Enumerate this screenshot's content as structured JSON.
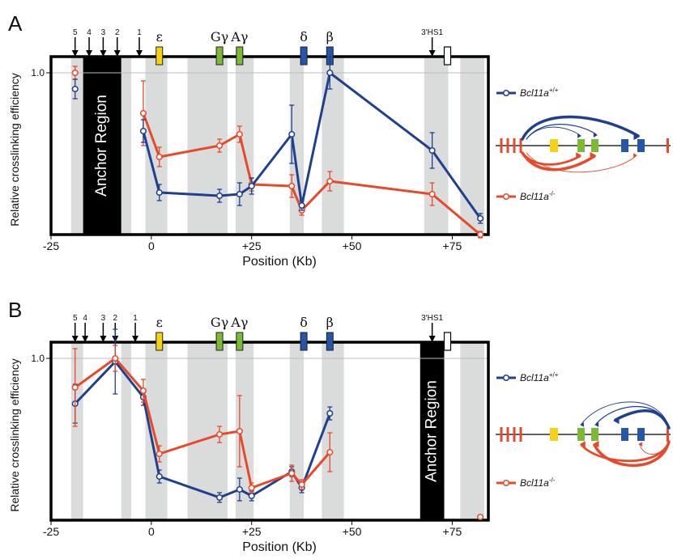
{
  "colors": {
    "wildtype": "#1f3f8f",
    "knockout": "#e8492a",
    "shade": "#dadcdc",
    "anchor": "#000000",
    "epsilon": "#f5d312",
    "gamma": "#7cb935",
    "beta_globin": "#2556a8"
  },
  "legend": {
    "wt": {
      "base": "Bcl11a",
      "sup": "+/+"
    },
    "ko": {
      "base": "Bcl11a",
      "sup": "-/-"
    }
  },
  "gene_labels": [
    "ε",
    "Gγ",
    "Aγ",
    "δ",
    "β"
  ],
  "hs_labels": [
    "5",
    "4",
    "3",
    "2",
    "1"
  ],
  "hs1_label": "3'HS1",
  "anchor_label": "Anchor Region",
  "chart_data": [
    {
      "panel": "A",
      "type": "line",
      "xlabel": "Position (Kb)",
      "ylabel": "Relative crosslinking efficiency",
      "xlim": [
        -25,
        84
      ],
      "ylim": [
        0,
        1.1
      ],
      "xticks": [
        "-25",
        "0",
        "+25",
        "+50",
        "+75"
      ],
      "yticks": [
        "1.0"
      ],
      "anchor_kb": [
        -17,
        -7.5
      ],
      "series": [
        {
          "name": "Bcl11a+/+",
          "x": [
            -19,
            -2,
            2,
            17,
            22,
            25,
            35,
            37.5,
            44.5,
            70,
            82
          ],
          "y": [
            0.9,
            0.64,
            0.26,
            0.24,
            0.25,
            0.3,
            0.62,
            0.18,
            1.0,
            0.52,
            0.1
          ],
          "err": [
            0.06,
            0.07,
            0.05,
            0.04,
            0.07,
            0.05,
            0.18,
            0.03,
            0.1,
            0.11,
            0.03
          ]
        },
        {
          "name": "Bcl11a-/-",
          "x": [
            -19,
            -2,
            2,
            17,
            22,
            25,
            35,
            37.5,
            44.5,
            70,
            82
          ],
          "y": [
            1.0,
            0.75,
            0.48,
            0.55,
            0.62,
            0.31,
            0.3,
            0.15,
            0.33,
            0.25,
            0.0
          ],
          "err": [
            0.04,
            0.2,
            0.06,
            0.04,
            0.05,
            0.04,
            0.07,
            0.03,
            0.06,
            0.07,
            0.02
          ]
        }
      ]
    },
    {
      "panel": "B",
      "type": "line",
      "xlabel": "Position (Kb)",
      "ylabel": "Relative crosslinking efficiency",
      "xlim": [
        -25,
        84
      ],
      "ylim": [
        0,
        1.1
      ],
      "xticks": [
        "-25",
        "0",
        "+25",
        "+50",
        "+75"
      ],
      "yticks": [
        "1.0"
      ],
      "anchor_kb": [
        67,
        73
      ],
      "series": [
        {
          "name": "Bcl11a+/+",
          "x": [
            -19,
            -9,
            -2,
            2,
            17,
            22,
            25,
            35,
            37.5,
            44.5
          ],
          "y": [
            0.72,
            0.98,
            0.76,
            0.27,
            0.14,
            0.19,
            0.15,
            0.3,
            0.2,
            0.66
          ],
          "err": [
            0.12,
            0.2,
            0.05,
            0.04,
            0.03,
            0.07,
            0.03,
            0.03,
            0.03,
            0.04
          ]
        },
        {
          "name": "Bcl11a-/-",
          "x": [
            -19,
            -9,
            -2,
            2,
            17,
            22,
            25,
            35,
            37.5,
            44.5,
            82
          ],
          "y": [
            0.82,
            1.0,
            0.8,
            0.41,
            0.53,
            0.55,
            0.2,
            0.29,
            0.22,
            0.42,
            0.02
          ],
          "err": [
            0.24,
            0.08,
            0.07,
            0.05,
            0.05,
            0.22,
            0.03,
            0.05,
            0.03,
            0.12,
            0.01
          ]
        }
      ]
    }
  ]
}
